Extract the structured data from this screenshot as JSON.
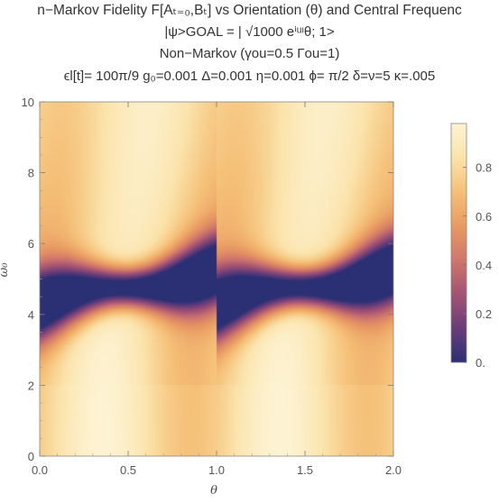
{
  "chart_data": {
    "type": "heatmap",
    "title_lines": [
      "n−Markov Fidelity F[Aₜ₌₀,Bₜ] vs Orientation (θ) and Central Frequenc",
      "|ψ>GOAL = | √1000 eⁱᵘᶥθ; 1>",
      "Non−Markov (γou=0.5 Γou=1)",
      "ϵl[t]= 100π/9  g₀=0.001 Δ=0.001 η=0.001 ϕ= π/2  δ=ν=5 κ=.005"
    ],
    "xlabel": "θ",
    "ylabel": "ω₀",
    "xlim": [
      0,
      2
    ],
    "ylim": [
      0,
      10
    ],
    "x_ticks": [
      "0.0",
      "0.5",
      "1.0",
      "1.5",
      "2.0"
    ],
    "x_tick_values": [
      0,
      0.5,
      1.0,
      1.5,
      2.0
    ],
    "y_ticks": [
      "0",
      "2",
      "4",
      "6",
      "8",
      "10"
    ],
    "y_tick_values": [
      0,
      2,
      4,
      6,
      8,
      10
    ],
    "colorbar": {
      "range": [
        0,
        0.98
      ],
      "ticks": [
        "0.",
        "0.2",
        "0.4",
        "0.6",
        "0.8"
      ],
      "tick_values": [
        0,
        0.2,
        0.4,
        0.6,
        0.8
      ],
      "colors": [
        "#2b2f74",
        "#6a3d78",
        "#a35374",
        "#d0766c",
        "#e99a62",
        "#f5c078",
        "#fbe3ab",
        "#fdf3d3"
      ]
    },
    "features": {
      "low_band_center_omega": 5.0,
      "low_band_slope_per_theta": 1.0,
      "period_theta": 1.0,
      "min_fidelity": 0.0,
      "max_fidelity": 0.98
    }
  }
}
